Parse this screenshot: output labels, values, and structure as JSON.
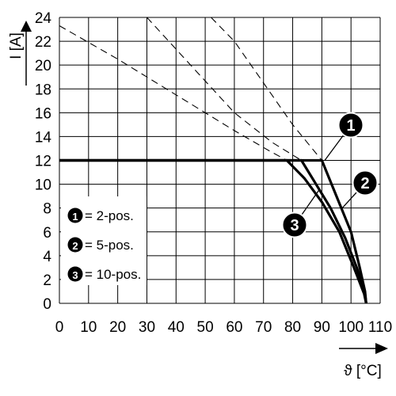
{
  "chart_data": {
    "type": "line",
    "xlabel": "ϑ [°C]",
    "ylabel": "I [A]",
    "xlim": [
      0,
      110
    ],
    "ylim": [
      0,
      24
    ],
    "x_ticks": [
      "0",
      "10",
      "20",
      "30",
      "40",
      "50",
      "60",
      "70",
      "80",
      "90",
      "100",
      "110"
    ],
    "y_ticks": [
      "0",
      "2",
      "4",
      "6",
      "8",
      "10",
      "12",
      "14",
      "16",
      "18",
      "20",
      "22",
      "24"
    ],
    "grid": true,
    "legend": {
      "placement": "bottom-left",
      "entries": [
        {
          "marker": "1",
          "text": "= 2-pos."
        },
        {
          "marker": "2",
          "text": "= 5-pos."
        },
        {
          "marker": "3",
          "text": "= 10-pos."
        }
      ]
    },
    "series": [
      {
        "marker": "1",
        "style": "solid",
        "points": [
          [
            0,
            12
          ],
          [
            90,
            12
          ],
          [
            95,
            9
          ],
          [
            100,
            6
          ],
          [
            103,
            3
          ],
          [
            104.8,
            1
          ],
          [
            105.2,
            0
          ]
        ]
      },
      {
        "marker": "2",
        "style": "solid",
        "points": [
          [
            0,
            12
          ],
          [
            83,
            12
          ],
          [
            88,
            10
          ],
          [
            93,
            8
          ],
          [
            98,
            5.5
          ],
          [
            102,
            3
          ],
          [
            104.8,
            0.8
          ],
          [
            105.2,
            0
          ]
        ]
      },
      {
        "marker": "3",
        "style": "solid",
        "points": [
          [
            0,
            12
          ],
          [
            78,
            12
          ],
          [
            84,
            10.5
          ],
          [
            90,
            8.5
          ],
          [
            96,
            6
          ],
          [
            101,
            3
          ],
          [
            104.5,
            0.8
          ],
          [
            105.2,
            0
          ]
        ]
      },
      {
        "marker": "1",
        "style": "dashed",
        "points": [
          [
            52,
            24
          ],
          [
            60,
            22
          ],
          [
            70,
            18.5
          ],
          [
            80,
            15
          ],
          [
            90,
            12
          ]
        ]
      },
      {
        "marker": "2",
        "style": "dashed",
        "points": [
          [
            30,
            24
          ],
          [
            45,
            20
          ],
          [
            60,
            16
          ],
          [
            73,
            13.5
          ],
          [
            83,
            12
          ]
        ]
      },
      {
        "marker": "3",
        "style": "dashed",
        "points": [
          [
            0,
            23.3
          ],
          [
            20,
            20.5
          ],
          [
            40,
            17.5
          ],
          [
            60,
            14.5
          ],
          [
            72,
            12.8
          ],
          [
            78,
            12
          ]
        ]
      }
    ],
    "callouts": [
      {
        "marker": "1",
        "point": [
          91,
          12
        ]
      },
      {
        "marker": "2",
        "point": [
          97,
          8
        ]
      },
      {
        "marker": "3",
        "point": [
          89,
          9.5
        ]
      }
    ]
  }
}
